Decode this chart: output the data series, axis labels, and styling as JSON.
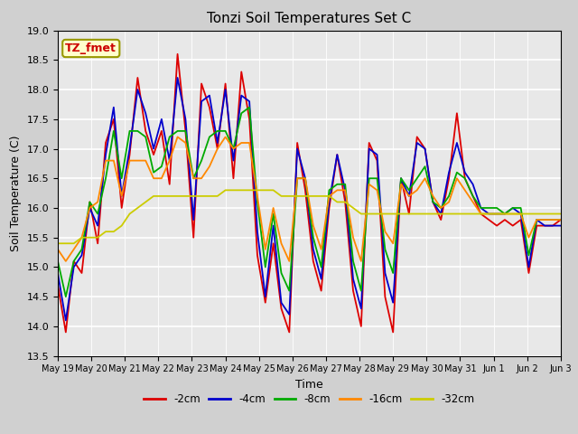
{
  "title": "Tonzi Soil Temperatures Set C",
  "xlabel": "Time",
  "ylabel": "Soil Temperature (C)",
  "ylim": [
    13.5,
    19.0
  ],
  "annotation_label": "TZ_fmet",
  "annotation_color": "#cc0000",
  "annotation_bg": "#ffffcc",
  "annotation_border": "#999900",
  "fig_facecolor": "#d0d0d0",
  "plot_facecolor": "#e8e8e8",
  "series_colors": {
    "-2cm": "#dd0000",
    "-4cm": "#0000cc",
    "-8cm": "#00aa00",
    "-16cm": "#ff8800",
    "-32cm": "#cccc00"
  },
  "xtick_labels": [
    "May 19",
    "May 20",
    "May 21",
    "May 22",
    "May 23",
    "May 24",
    "May 25",
    "May 26",
    "May 27",
    "May 28",
    "May 29",
    "May 30",
    "May 31",
    "Jun 1",
    "Jun 2",
    "Jun 3"
  ],
  "ytick_values": [
    13.5,
    14.0,
    14.5,
    15.0,
    15.5,
    16.0,
    16.5,
    17.0,
    17.5,
    18.0,
    18.5,
    19.0
  ],
  "data_2cm": [
    14.7,
    13.9,
    15.1,
    14.9,
    16.1,
    15.4,
    17.1,
    17.5,
    16.0,
    16.9,
    18.2,
    17.3,
    16.9,
    17.3,
    16.4,
    18.6,
    17.3,
    15.5,
    18.1,
    17.7,
    17.0,
    18.1,
    16.5,
    18.3,
    17.5,
    15.2,
    14.4,
    15.4,
    14.3,
    13.9,
    17.1,
    16.3,
    15.1,
    14.6,
    16.0,
    16.9,
    16.1,
    14.6,
    14.0,
    17.1,
    16.8,
    14.5,
    13.9,
    16.5,
    15.9,
    17.2,
    17.0,
    16.1,
    15.8,
    16.5,
    17.6,
    16.5,
    16.2,
    15.9,
    15.8,
    15.7,
    15.8,
    15.7,
    15.8,
    14.9,
    15.7,
    15.7,
    15.7,
    15.8
  ],
  "data_4cm": [
    14.9,
    14.1,
    15.0,
    15.2,
    16.0,
    15.7,
    16.9,
    17.7,
    16.2,
    17.0,
    18.0,
    17.6,
    17.0,
    17.5,
    16.8,
    18.2,
    17.5,
    15.8,
    17.8,
    17.9,
    17.1,
    18.0,
    16.8,
    17.9,
    17.8,
    15.6,
    14.5,
    15.7,
    14.4,
    14.2,
    17.0,
    16.5,
    15.3,
    14.8,
    16.1,
    16.9,
    16.3,
    14.8,
    14.3,
    17.0,
    16.9,
    14.9,
    14.4,
    16.5,
    16.2,
    17.1,
    17.0,
    16.1,
    15.9,
    16.6,
    17.1,
    16.6,
    16.4,
    16.0,
    15.9,
    15.9,
    15.9,
    16.0,
    15.9,
    15.0,
    15.8,
    15.7,
    15.7,
    15.7
  ],
  "data_8cm": [
    15.1,
    14.5,
    15.1,
    15.3,
    16.1,
    15.9,
    16.5,
    17.3,
    16.5,
    17.3,
    17.3,
    17.2,
    16.6,
    16.7,
    17.2,
    17.3,
    17.3,
    16.5,
    16.8,
    17.2,
    17.3,
    17.3,
    17.0,
    17.6,
    17.7,
    16.1,
    15.0,
    15.9,
    14.9,
    14.6,
    16.5,
    16.5,
    15.5,
    15.0,
    16.3,
    16.4,
    16.4,
    15.1,
    14.6,
    16.5,
    16.5,
    15.3,
    14.9,
    16.5,
    16.3,
    16.5,
    16.7,
    16.1,
    16.0,
    16.2,
    16.6,
    16.5,
    16.2,
    16.0,
    16.0,
    16.0,
    15.9,
    16.0,
    16.0,
    15.2,
    15.8,
    15.8,
    15.8,
    15.8
  ],
  "data_16cm": [
    15.3,
    15.1,
    15.3,
    15.5,
    16.0,
    16.1,
    16.8,
    16.8,
    16.2,
    16.8,
    16.8,
    16.8,
    16.5,
    16.5,
    16.8,
    17.2,
    17.1,
    16.5,
    16.5,
    16.7,
    17.0,
    17.2,
    17.0,
    17.1,
    17.1,
    16.2,
    15.3,
    16.0,
    15.4,
    15.1,
    16.5,
    16.5,
    15.7,
    15.3,
    16.2,
    16.3,
    16.3,
    15.5,
    15.1,
    16.4,
    16.3,
    15.6,
    15.4,
    16.4,
    16.2,
    16.3,
    16.5,
    16.2,
    16.0,
    16.1,
    16.5,
    16.3,
    16.1,
    15.9,
    15.9,
    15.9,
    15.9,
    15.9,
    15.9,
    15.5,
    15.8,
    15.8,
    15.8,
    15.8
  ],
  "data_32cm": [
    15.4,
    15.4,
    15.4,
    15.5,
    15.5,
    15.5,
    15.6,
    15.6,
    15.7,
    15.9,
    16.0,
    16.1,
    16.2,
    16.2,
    16.2,
    16.2,
    16.2,
    16.2,
    16.2,
    16.2,
    16.2,
    16.3,
    16.3,
    16.3,
    16.3,
    16.3,
    16.3,
    16.3,
    16.2,
    16.2,
    16.2,
    16.2,
    16.2,
    16.2,
    16.2,
    16.1,
    16.1,
    16.0,
    15.9,
    15.9,
    15.9,
    15.9,
    15.9,
    15.9,
    15.9,
    15.9,
    15.9,
    15.9,
    15.9,
    15.9,
    15.9,
    15.9,
    15.9,
    15.9,
    15.9,
    15.9,
    15.9,
    15.9,
    15.9,
    15.9,
    15.9,
    15.9,
    15.9,
    15.9
  ]
}
